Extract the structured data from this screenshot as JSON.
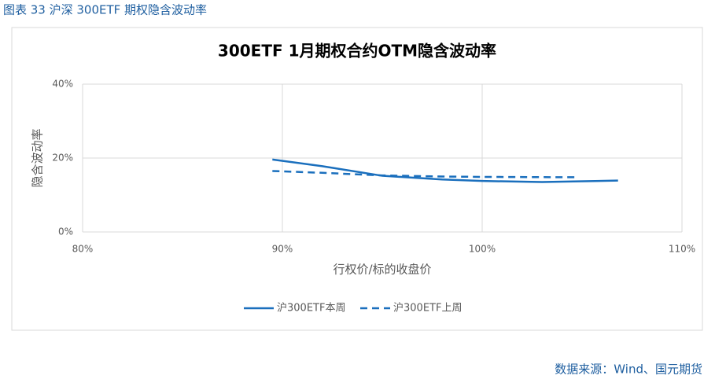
{
  "header": {
    "caption": "图表 33 沪深 300ETF 期权隐含波动率"
  },
  "chart_data": {
    "type": "line",
    "title": "300ETF 1月期权合约OTM隐含波动率",
    "xlabel": "行权价/标的收盘价",
    "ylabel": "隐含波动率",
    "xlim": [
      80,
      110
    ],
    "xticks": [
      {
        "value": 80,
        "label": "80%"
      },
      {
        "value": 90,
        "label": "90%"
      },
      {
        "value": 100,
        "label": "100%"
      },
      {
        "value": 110,
        "label": "110%"
      }
    ],
    "ylim": [
      0,
      40
    ],
    "yticks": [
      {
        "value": 0,
        "label": "0%"
      },
      {
        "value": 20,
        "label": "20%"
      },
      {
        "value": 40,
        "label": "40%"
      }
    ],
    "grid": true,
    "legend": "bottom",
    "series": [
      {
        "name": "沪300ETF本周",
        "color": "#1a6fbd",
        "dash": false,
        "x": [
          89.5,
          92,
          95,
          98,
          100,
          103,
          106.8
        ],
        "values": [
          19.6,
          17.8,
          15.2,
          14.2,
          13.8,
          13.5,
          13.9
        ]
      },
      {
        "name": "沪300ETF上周",
        "color": "#1a6fbd",
        "dash": true,
        "x": [
          89.5,
          92,
          95,
          98,
          100,
          104.7
        ],
        "values": [
          16.5,
          16.0,
          15.3,
          15.0,
          14.9,
          14.8
        ]
      }
    ]
  },
  "source": "数据来源：Wind、国元期货"
}
